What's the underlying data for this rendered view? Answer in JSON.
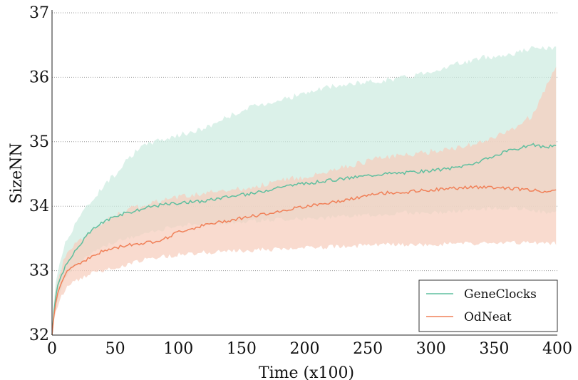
{
  "chart_data": {
    "type": "line",
    "title": "",
    "xlabel": "Time (x100)",
    "ylabel": "SizeNN",
    "xlim": [
      0,
      400
    ],
    "ylim": [
      32,
      37
    ],
    "xticks": [
      0,
      50,
      100,
      150,
      200,
      250,
      300,
      350,
      400
    ],
    "yticks": [
      32,
      33,
      34,
      35,
      36,
      37
    ],
    "xtick_labels": [
      "0",
      "50",
      "100",
      "150",
      "200",
      "250",
      "300",
      "350",
      "400"
    ],
    "ytick_labels": [
      "32",
      "33",
      "34",
      "35",
      "36",
      "37"
    ],
    "grid": "horizontal-dotted",
    "legend_position": "bottom-right",
    "series": [
      {
        "name": "GeneClocks",
        "color": "#5fbf9f",
        "band_color": "#cdebe1",
        "x": [
          0,
          2,
          5,
          10,
          15,
          20,
          30,
          40,
          50,
          60,
          70,
          80,
          90,
          100,
          120,
          140,
          160,
          180,
          200,
          220,
          240,
          260,
          280,
          300,
          320,
          340,
          360,
          380,
          390,
          400
        ],
        "mean": [
          32.0,
          32.5,
          32.8,
          33.05,
          33.2,
          33.35,
          33.6,
          33.75,
          33.85,
          33.9,
          33.95,
          34.0,
          34.03,
          34.05,
          34.08,
          34.15,
          34.2,
          34.3,
          34.35,
          34.4,
          34.45,
          34.5,
          34.52,
          34.55,
          34.6,
          34.7,
          34.85,
          34.95,
          34.92,
          34.93
        ],
        "upper": [
          32.0,
          32.7,
          33.05,
          33.4,
          33.6,
          33.8,
          34.05,
          34.3,
          34.5,
          34.75,
          34.9,
          35.0,
          35.05,
          35.1,
          35.2,
          35.4,
          35.55,
          35.65,
          35.75,
          35.85,
          35.9,
          35.95,
          36.0,
          36.1,
          36.2,
          36.3,
          36.35,
          36.45,
          36.45,
          36.45
        ],
        "lower": [
          32.0,
          32.4,
          32.6,
          32.9,
          33.0,
          33.1,
          33.25,
          33.35,
          33.45,
          33.5,
          33.55,
          33.6,
          33.65,
          33.7,
          33.72,
          33.75,
          33.77,
          33.8,
          33.8,
          33.82,
          33.85,
          33.87,
          33.9,
          33.9,
          33.92,
          33.95,
          33.97,
          33.95,
          33.9,
          33.9
        ]
      },
      {
        "name": "OdNeat",
        "color": "#f08058",
        "band_color": "#f7cdbd",
        "x": [
          0,
          2,
          5,
          10,
          15,
          20,
          30,
          40,
          50,
          60,
          70,
          80,
          90,
          100,
          120,
          140,
          160,
          180,
          200,
          220,
          240,
          260,
          280,
          300,
          320,
          340,
          360,
          380,
          390,
          400
        ],
        "mean": [
          32.0,
          32.4,
          32.7,
          32.95,
          33.05,
          33.1,
          33.2,
          33.3,
          33.35,
          33.4,
          33.42,
          33.45,
          33.5,
          33.6,
          33.7,
          33.78,
          33.85,
          33.92,
          34.0,
          34.05,
          34.12,
          34.2,
          34.22,
          34.25,
          34.28,
          34.3,
          34.28,
          34.25,
          34.22,
          34.28
        ],
        "upper": [
          32.0,
          32.6,
          32.9,
          33.2,
          33.35,
          33.45,
          33.6,
          33.75,
          33.85,
          33.95,
          34.0,
          34.05,
          34.1,
          34.15,
          34.2,
          34.25,
          34.3,
          34.4,
          34.45,
          34.55,
          34.65,
          34.75,
          34.8,
          34.85,
          34.9,
          35.0,
          35.15,
          35.4,
          35.8,
          36.2
        ],
        "lower": [
          32.0,
          32.3,
          32.5,
          32.7,
          32.8,
          32.85,
          32.95,
          33.0,
          33.05,
          33.1,
          33.15,
          33.2,
          33.22,
          33.25,
          33.28,
          33.3,
          33.32,
          33.33,
          33.35,
          33.37,
          33.38,
          33.4,
          33.4,
          33.4,
          33.42,
          33.42,
          33.43,
          33.43,
          33.43,
          33.43
        ]
      }
    ]
  }
}
